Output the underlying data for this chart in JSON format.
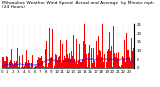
{
  "title_text": "Milwaukee Weather Wind Speed  Actual and Average  by Minute mph  (24 Hours)",
  "bg_color": "#ffffff",
  "bar_color": "#ff0000",
  "avg_color": "#0000ff",
  "n_points": 1440,
  "y_max": 25,
  "y_ticks": [
    0,
    5,
    10,
    15,
    20,
    25
  ],
  "y_tick_labels": [
    "0",
    "5",
    "10",
    "15",
    "20",
    "25"
  ],
  "title_fontsize": 3.2,
  "tick_fontsize": 2.8,
  "grid_color": "#999999",
  "seed": 12345
}
